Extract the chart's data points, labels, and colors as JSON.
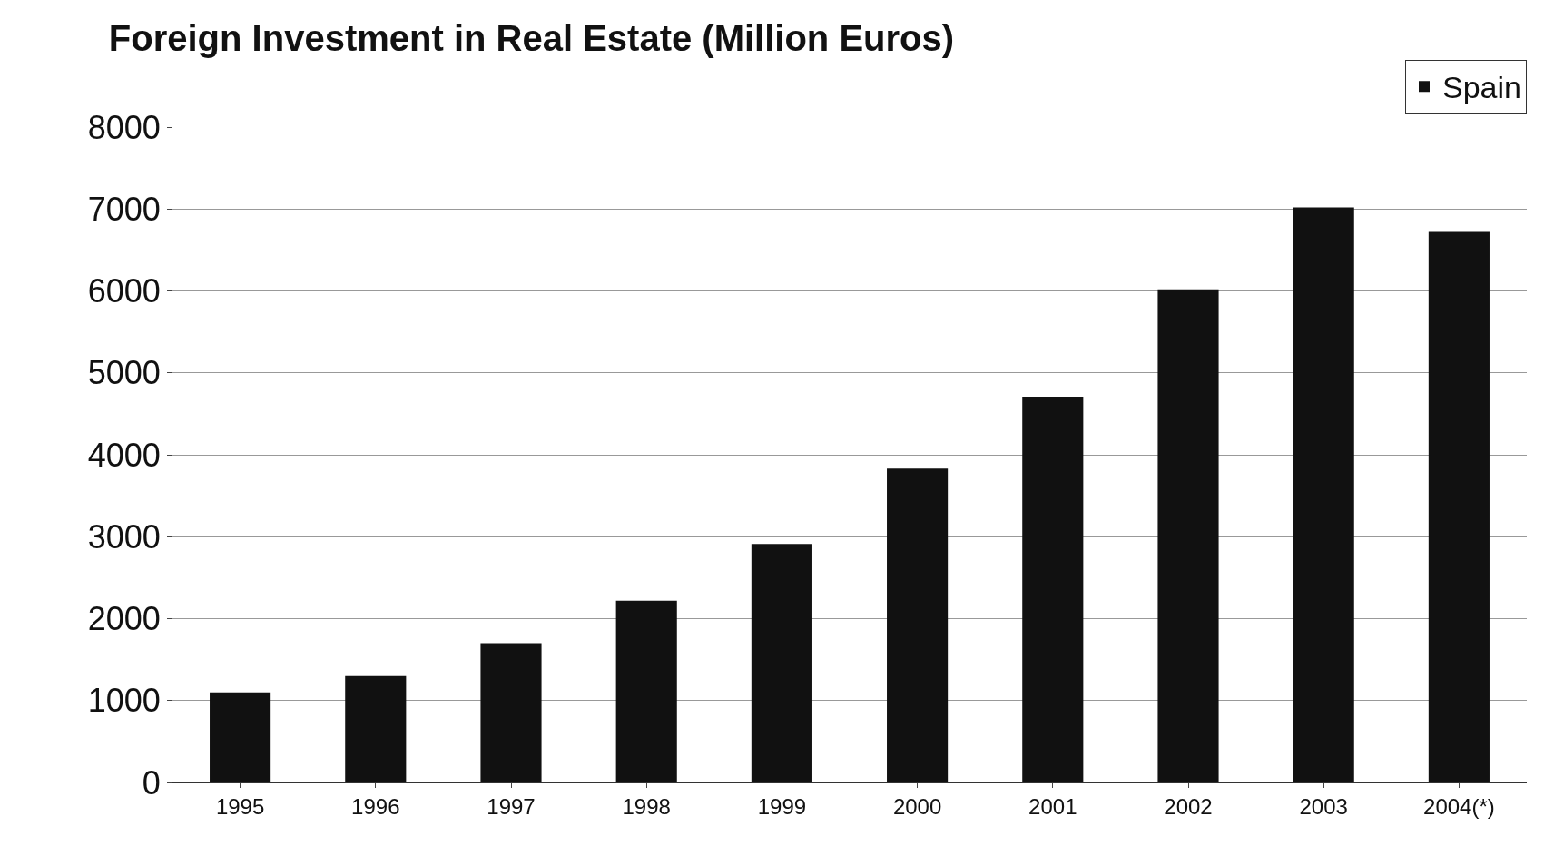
{
  "chart_data": {
    "type": "bar",
    "title": "Foreign Investment in Real Estate (Million Euros)",
    "categories": [
      "1995",
      "1996",
      "1997",
      "1998",
      "1999",
      "2000",
      "2001",
      "2002",
      "2003",
      "2004(*)"
    ],
    "series": [
      {
        "name": "Spain",
        "color": "#111111",
        "values": [
          1100,
          1300,
          1700,
          2220,
          2910,
          3830,
          4710,
          6020,
          7020,
          6720
        ]
      }
    ],
    "ylim": [
      0,
      8000
    ],
    "yticks": [
      0,
      1000,
      2000,
      3000,
      4000,
      5000,
      6000,
      7000,
      8000
    ],
    "grid": "y",
    "legend": "top right"
  }
}
